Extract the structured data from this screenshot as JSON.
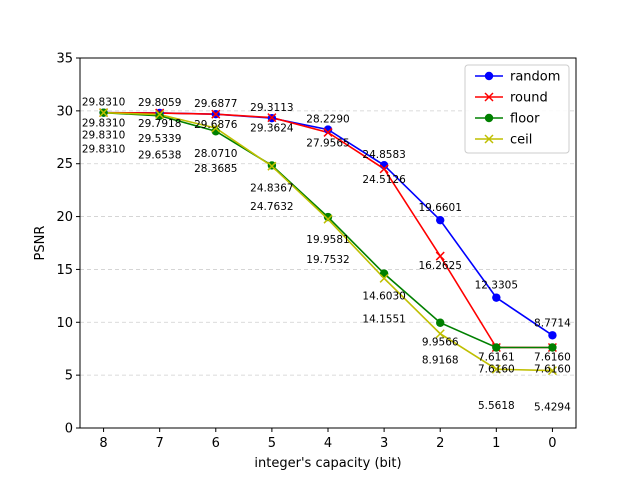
{
  "chart_data": {
    "type": "line",
    "xlabel": "integer's capacity (bit)",
    "ylabel": "PSNR",
    "x": [
      8,
      7,
      6,
      5,
      4,
      3,
      2,
      1,
      0
    ],
    "x_reversed": true,
    "ylim": [
      0,
      35
    ],
    "yticks": [
      0,
      5,
      10,
      15,
      20,
      25,
      30,
      35
    ],
    "grid": "horizontal-dashed",
    "legend_position": "top-right",
    "series": [
      {
        "name": "random",
        "color": "#0000ff",
        "marker": "circle",
        "values": [
          29.831,
          29.8059,
          29.6877,
          29.3113,
          28.229,
          24.8583,
          19.6601,
          12.3305,
          8.7714
        ],
        "labels": [
          "29.8310",
          "29.8059",
          "29.6877",
          "29.3113",
          "28.2290",
          "24.8583",
          "19.6601",
          "12.3305",
          "8.7714"
        ]
      },
      {
        "name": "round",
        "color": "#ff0000",
        "marker": "x",
        "values": [
          29.831,
          29.7918,
          29.6876,
          29.3624,
          27.9565,
          24.5126,
          16.2625,
          7.6161,
          7.616
        ],
        "labels": [
          "29.8310",
          "29.7918",
          "29.6876",
          "29.3624",
          "27.9565",
          "24.5126",
          "16.2625",
          "7.6161",
          "7.6160"
        ]
      },
      {
        "name": "floor",
        "color": "#008000",
        "marker": "circle",
        "values": [
          29.831,
          29.5339,
          28.071,
          24.8367,
          19.9581,
          14.603,
          9.9566,
          7.616,
          7.616
        ],
        "labels": [
          "29.8310",
          "29.5339",
          "28.0710",
          "24.8367",
          "19.9581",
          "14.6030",
          "9.9566",
          "7.6160",
          "7.6160"
        ]
      },
      {
        "name": "ceil",
        "color": "#bfbf00",
        "marker": "x",
        "values": [
          29.831,
          29.6538,
          28.3685,
          24.7632,
          19.7532,
          14.1551,
          8.9168,
          5.5618,
          5.4294
        ],
        "labels": [
          "29.8310",
          "29.6538",
          "28.3685",
          "24.7632",
          "19.7532",
          "14.1551",
          "8.9168",
          "5.5618",
          "5.4294"
        ]
      }
    ]
  }
}
